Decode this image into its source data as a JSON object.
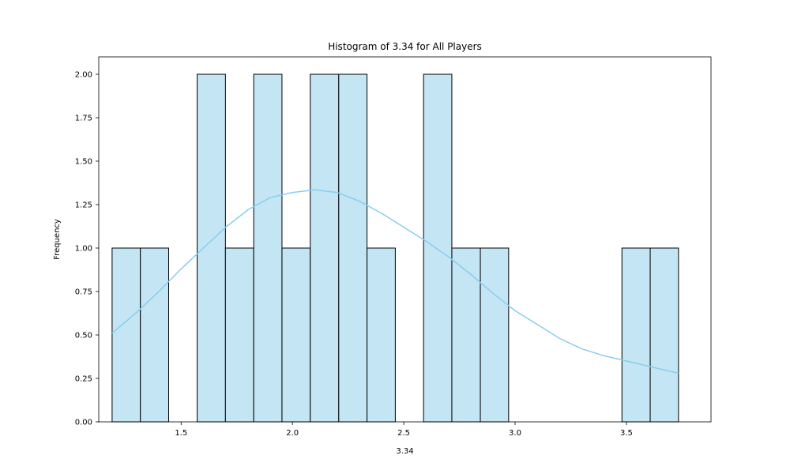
{
  "chart_data": {
    "type": "bar",
    "subtype": "histogram-with-kde",
    "title": "Histogram of 3.34 for All Players",
    "xlabel": "3.34",
    "ylabel": "Frequency",
    "xlim": [
      1.13,
      3.88
    ],
    "ylim": [
      0,
      2.1
    ],
    "x_ticks": [
      1.5,
      2.0,
      2.5,
      3.0,
      3.5
    ],
    "x_tick_labels": [
      "1.5",
      "2.0",
      "2.5",
      "3.0",
      "3.5"
    ],
    "y_ticks": [
      0,
      0.25,
      0.5,
      0.75,
      1.0,
      1.25,
      1.5,
      1.75,
      2.0
    ],
    "y_tick_labels": [
      "0.00",
      "0.25",
      "0.50",
      "0.75",
      "1.00",
      "1.25",
      "1.50",
      "1.75",
      "2.00"
    ],
    "bin_edges": [
      1.19,
      1.317,
      1.444,
      1.572,
      1.699,
      1.826,
      1.953,
      2.08,
      2.208,
      2.335,
      2.462,
      2.589,
      2.716,
      2.844,
      2.971,
      3.098,
      3.225,
      3.352,
      3.48,
      3.607,
      3.734
    ],
    "counts": [
      1,
      1,
      0,
      2,
      1,
      2,
      1,
      2,
      2,
      1,
      0,
      2,
      1,
      1,
      0,
      0,
      0,
      0,
      1,
      1
    ],
    "kde": {
      "x": [
        1.19,
        1.3,
        1.4,
        1.5,
        1.6,
        1.7,
        1.8,
        1.9,
        2.0,
        2.1,
        2.2,
        2.3,
        2.4,
        2.5,
        2.6,
        2.7,
        2.8,
        2.9,
        3.0,
        3.1,
        3.2,
        3.3,
        3.4,
        3.5,
        3.6,
        3.734
      ],
      "y": [
        0.51,
        0.63,
        0.75,
        0.88,
        1.0,
        1.12,
        1.22,
        1.29,
        1.32,
        1.335,
        1.32,
        1.27,
        1.2,
        1.12,
        1.04,
        0.95,
        0.85,
        0.74,
        0.64,
        0.56,
        0.48,
        0.42,
        0.38,
        0.35,
        0.32,
        0.28
      ]
    },
    "grid": false,
    "legend": "none",
    "colors": {
      "bar_fill": "#c4e5f4",
      "bar_edge": "#000000",
      "kde_line": "#87ceeb",
      "axes": "#000000"
    }
  }
}
